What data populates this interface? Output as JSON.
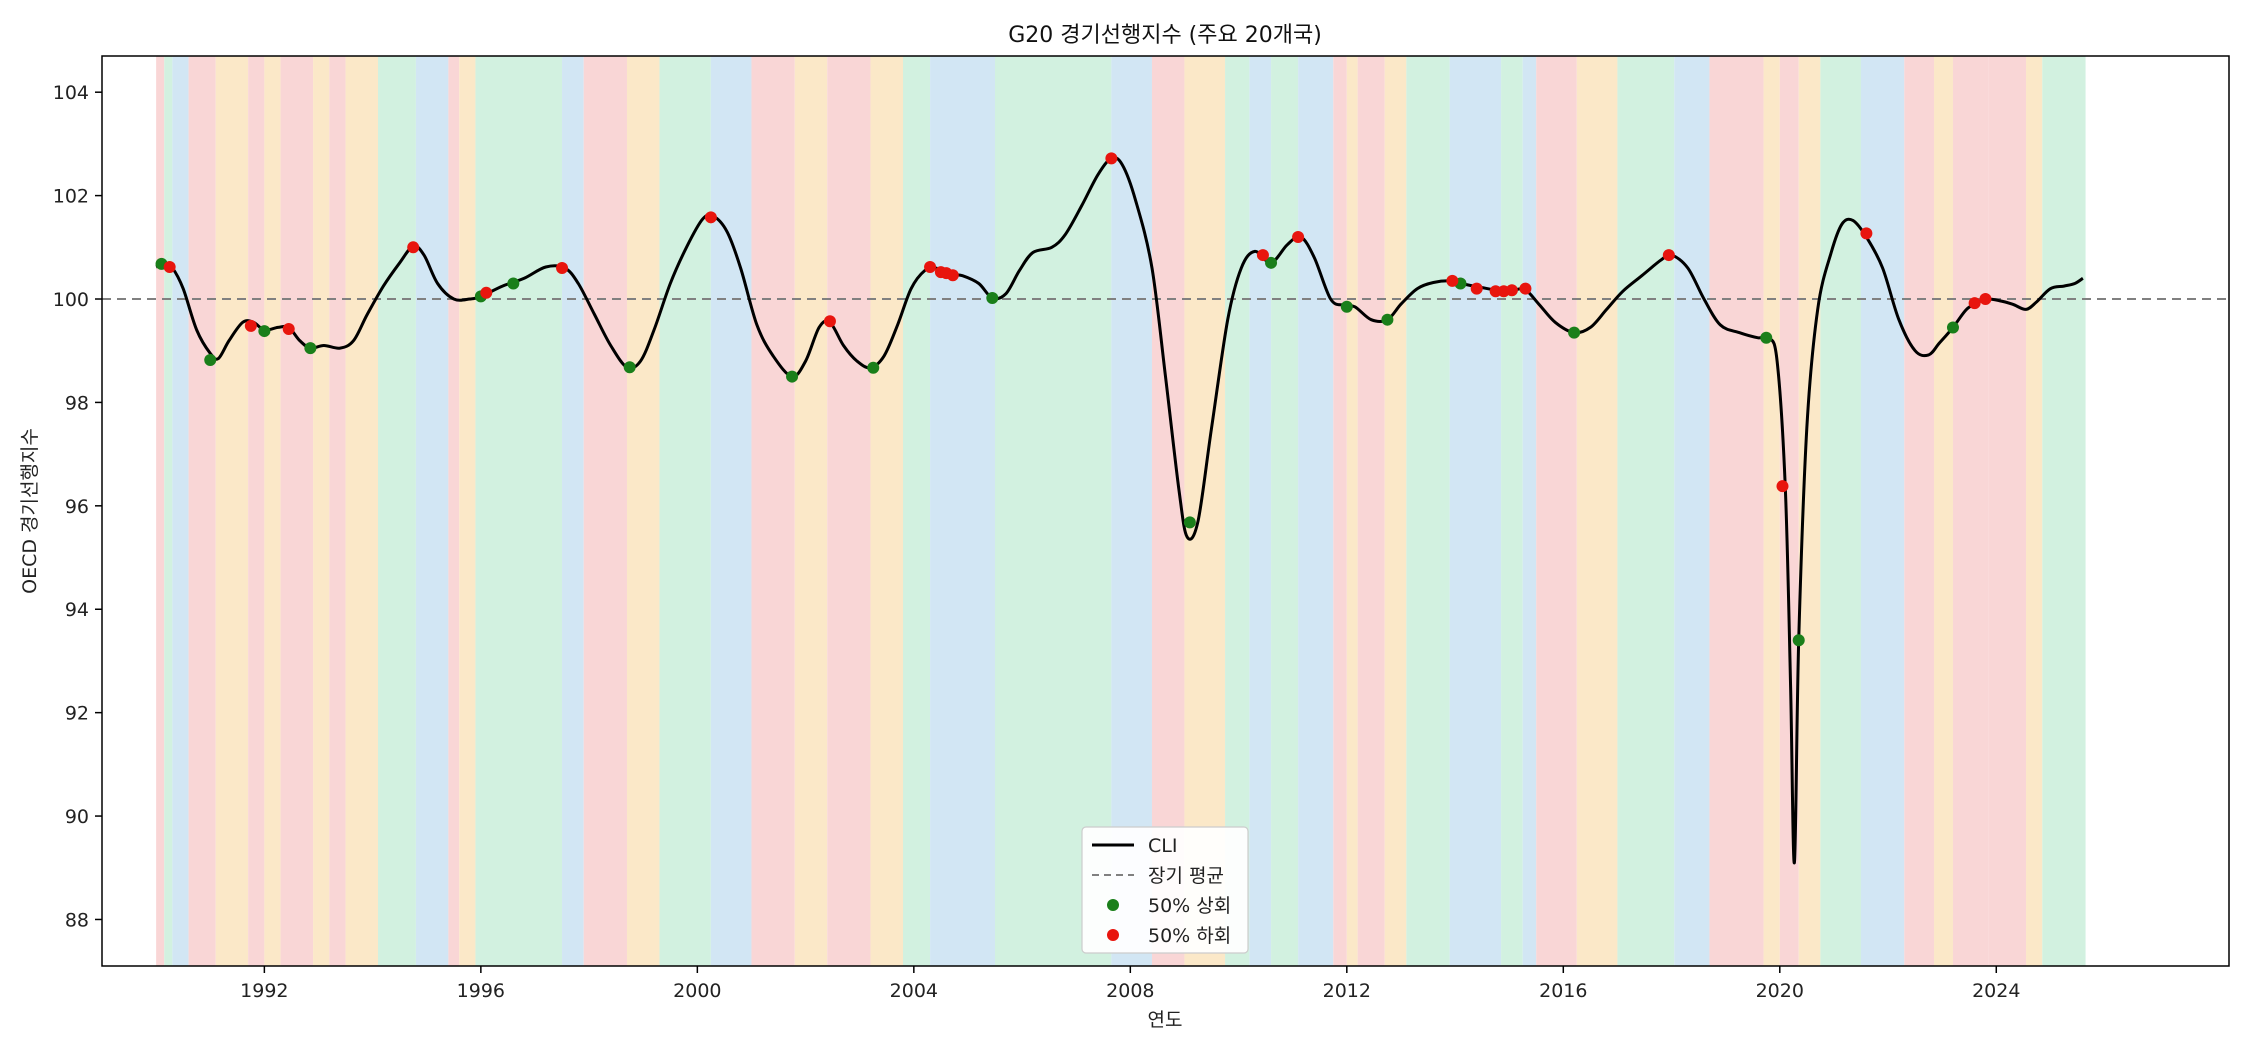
{
  "chart_data": {
    "type": "line",
    "title": "G20 경기선행지수 (주요 20개국)",
    "xlabel": "연도",
    "ylabel": "OECD 경기선행지수",
    "xlim": [
      1989.0,
      2028.3
    ],
    "ylim": [
      87.1,
      104.7
    ],
    "x_ticks": [
      "1992",
      "1996",
      "2000",
      "2004",
      "2008",
      "2012",
      "2016",
      "2020",
      "2024"
    ],
    "y_ticks": [
      "88",
      "90",
      "92",
      "94",
      "96",
      "98",
      "100",
      "102",
      "104"
    ],
    "reference_line": {
      "name": "장기 평균",
      "value": 100,
      "style": "dashed",
      "color": "#808080"
    },
    "grid": false,
    "legend_position": "lower-center",
    "legend": [
      {
        "label": "CLI",
        "kind": "line",
        "color": "#000000"
      },
      {
        "label": "장기 평균",
        "kind": "dashed",
        "color": "#808080"
      },
      {
        "label": "50% 상회",
        "kind": "dot",
        "color": "#1a7f1a"
      },
      {
        "label": "50% 하회",
        "kind": "dot",
        "color": "#e8150e"
      }
    ],
    "phase_colors": {
      "expansion": "#d2f1e0",
      "downturn": "#fbe8c8",
      "slowdown": "#f9d6d6",
      "recovery": "#d2e6f4"
    },
    "phases": [
      [
        "1990.00",
        "1990.15",
        "slowdown"
      ],
      [
        "1990.15",
        "1990.30",
        "expansion"
      ],
      [
        "1990.30",
        "1990.60",
        "recovery"
      ],
      [
        "1990.60",
        "1991.10",
        "slowdown"
      ],
      [
        "1991.10",
        "1991.70",
        "downturn"
      ],
      [
        "1991.70",
        "1992.00",
        "slowdown"
      ],
      [
        "1992.00",
        "1992.30",
        "downturn"
      ],
      [
        "1992.30",
        "1992.90",
        "slowdown"
      ],
      [
        "1992.90",
        "1993.20",
        "downturn"
      ],
      [
        "1993.20",
        "1993.50",
        "slowdown"
      ],
      [
        "1993.50",
        "1994.10",
        "downturn"
      ],
      [
        "1994.10",
        "1994.80",
        "expansion"
      ],
      [
        "1994.80",
        "1995.40",
        "recovery"
      ],
      [
        "1995.40",
        "1995.60",
        "slowdown"
      ],
      [
        "1995.60",
        "1995.90",
        "downturn"
      ],
      [
        "1995.90",
        "1997.50",
        "expansion"
      ],
      [
        "1997.50",
        "1997.90",
        "recovery"
      ],
      [
        "1997.90",
        "1998.70",
        "slowdown"
      ],
      [
        "1998.70",
        "1999.30",
        "downturn"
      ],
      [
        "1999.30",
        "2000.25",
        "expansion"
      ],
      [
        "2000.25",
        "2001.00",
        "recovery"
      ],
      [
        "2001.00",
        "2001.80",
        "slowdown"
      ],
      [
        "2001.80",
        "2002.40",
        "downturn"
      ],
      [
        "2002.40",
        "2003.20",
        "slowdown"
      ],
      [
        "2003.20",
        "2003.80",
        "downturn"
      ],
      [
        "2003.80",
        "2004.30",
        "expansion"
      ],
      [
        "2004.30",
        "2005.50",
        "recovery"
      ],
      [
        "2005.50",
        "2007.65",
        "expansion"
      ],
      [
        "2007.65",
        "2008.40",
        "recovery"
      ],
      [
        "2008.40",
        "2009.00",
        "slowdown"
      ],
      [
        "2009.00",
        "2009.75",
        "downturn"
      ],
      [
        "2009.75",
        "2010.20",
        "expansion"
      ],
      [
        "2010.20",
        "2010.60",
        "recovery"
      ],
      [
        "2010.60",
        "2011.10",
        "expansion"
      ],
      [
        "2011.10",
        "2011.75",
        "recovery"
      ],
      [
        "2011.75",
        "2012.00",
        "slowdown"
      ],
      [
        "2012.00",
        "2012.20",
        "downturn"
      ],
      [
        "2012.20",
        "2012.70",
        "slowdown"
      ],
      [
        "2012.70",
        "2013.10",
        "downturn"
      ],
      [
        "2013.10",
        "2013.90",
        "expansion"
      ],
      [
        "2013.90",
        "2014.85",
        "recovery"
      ],
      [
        "2014.85",
        "2015.25",
        "expansion"
      ],
      [
        "2015.25",
        "2015.50",
        "recovery"
      ],
      [
        "2015.50",
        "2016.25",
        "slowdown"
      ],
      [
        "2016.25",
        "2017.00",
        "downturn"
      ],
      [
        "2017.00",
        "2018.05",
        "expansion"
      ],
      [
        "2018.05",
        "2018.70",
        "recovery"
      ],
      [
        "2018.70",
        "2019.70",
        "slowdown"
      ],
      [
        "2019.70",
        "2020.00",
        "downturn"
      ],
      [
        "2020.00",
        "2020.35",
        "slowdown"
      ],
      [
        "2020.35",
        "2020.75",
        "downturn"
      ],
      [
        "2020.75",
        "2021.50",
        "expansion"
      ],
      [
        "2021.50",
        "2022.30",
        "recovery"
      ],
      [
        "2022.30",
        "2022.85",
        "slowdown"
      ],
      [
        "2022.85",
        "2023.20",
        "downturn"
      ],
      [
        "2023.20",
        "2023.85",
        "slowdown"
      ],
      [
        "2023.85",
        "2024.55",
        "slowdown"
      ],
      [
        "2024.55",
        "2024.85",
        "downturn"
      ],
      [
        "2024.85",
        "2025.65",
        "expansion"
      ]
    ],
    "series": [
      {
        "name": "CLI",
        "color": "#000000",
        "points": [
          [
            "1990.00",
            100.62
          ],
          [
            "1990.15",
            100.68
          ],
          [
            "1990.30",
            100.6
          ],
          [
            "1990.50",
            100.2
          ],
          [
            "1990.75",
            99.4
          ],
          [
            "1991.00",
            98.95
          ],
          [
            "1991.15",
            98.85
          ],
          [
            "1991.35",
            99.2
          ],
          [
            "1991.60",
            99.55
          ],
          [
            "1991.80",
            99.55
          ],
          [
            "1992.00",
            99.4
          ],
          [
            "1992.25",
            99.45
          ],
          [
            "1992.45",
            99.45
          ],
          [
            "1992.65",
            99.2
          ],
          [
            "1992.85",
            99.05
          ],
          [
            "1993.10",
            99.1
          ],
          [
            "1993.40",
            99.05
          ],
          [
            "1993.65",
            99.2
          ],
          [
            "1993.90",
            99.7
          ],
          [
            "1994.20",
            100.25
          ],
          [
            "1994.50",
            100.7
          ],
          [
            "1994.75",
            101.02
          ],
          [
            "1994.95",
            100.85
          ],
          [
            "1995.20",
            100.3
          ],
          [
            "1995.50",
            100.0
          ],
          [
            "1995.80",
            100.0
          ],
          [
            "1996.00",
            100.05
          ],
          [
            "1996.40",
            100.25
          ],
          [
            "1996.80",
            100.4
          ],
          [
            "1997.20",
            100.62
          ],
          [
            "1997.55",
            100.6
          ],
          [
            "1997.80",
            100.3
          ],
          [
            "1998.10",
            99.7
          ],
          [
            "1998.40",
            99.1
          ],
          [
            "1998.70",
            98.68
          ],
          [
            "1998.95",
            98.8
          ],
          [
            "1999.20",
            99.4
          ],
          [
            "1999.50",
            100.3
          ],
          [
            "1999.80",
            101.0
          ],
          [
            "2000.10",
            101.55
          ],
          [
            "2000.30",
            101.6
          ],
          [
            "2000.55",
            101.3
          ],
          [
            "2000.80",
            100.6
          ],
          [
            "2001.10",
            99.5
          ],
          [
            "2001.40",
            98.9
          ],
          [
            "2001.75",
            98.5
          ],
          [
            "2002.00",
            98.8
          ],
          [
            "2002.25",
            99.45
          ],
          [
            "2002.45",
            99.55
          ],
          [
            "2002.70",
            99.1
          ],
          [
            "2002.95",
            98.8
          ],
          [
            "2003.20",
            98.67
          ],
          [
            "2003.45",
            98.9
          ],
          [
            "2003.70",
            99.5
          ],
          [
            "2003.95",
            100.2
          ],
          [
            "2004.20",
            100.55
          ],
          [
            "2004.40",
            100.6
          ],
          [
            "2004.70",
            100.48
          ],
          [
            "2004.90",
            100.45
          ],
          [
            "2005.20",
            100.3
          ],
          [
            "2005.45",
            100.02
          ],
          [
            "2005.70",
            100.1
          ],
          [
            "2005.95",
            100.55
          ],
          [
            "2006.20",
            100.9
          ],
          [
            "2006.55",
            101.0
          ],
          [
            "2006.80",
            101.25
          ],
          [
            "2007.10",
            101.8
          ],
          [
            "2007.40",
            102.4
          ],
          [
            "2007.65",
            102.72
          ],
          [
            "2007.85",
            102.6
          ],
          [
            "2008.10",
            101.9
          ],
          [
            "2008.40",
            100.6
          ],
          [
            "2008.65",
            98.5
          ],
          [
            "2008.90",
            96.3
          ],
          [
            "2009.05",
            95.4
          ],
          [
            "2009.25",
            95.7
          ],
          [
            "2009.50",
            97.5
          ],
          [
            "2009.80",
            99.6
          ],
          [
            "2010.05",
            100.6
          ],
          [
            "2010.30",
            100.92
          ],
          [
            "2010.60",
            100.7
          ],
          [
            "2010.90",
            101.05
          ],
          [
            "2011.15",
            101.2
          ],
          [
            "2011.40",
            100.8
          ],
          [
            "2011.70",
            100.0
          ],
          [
            "2011.95",
            99.88
          ],
          [
            "2012.15",
            99.85
          ],
          [
            "2012.45",
            99.6
          ],
          [
            "2012.75",
            99.6
          ],
          [
            "2013.00",
            99.9
          ],
          [
            "2013.30",
            100.2
          ],
          [
            "2013.60",
            100.32
          ],
          [
            "2013.95",
            100.35
          ],
          [
            "2014.20",
            100.28
          ],
          [
            "2014.50",
            100.22
          ],
          [
            "2014.80",
            100.17
          ],
          [
            "2015.10",
            100.18
          ],
          [
            "2015.30",
            100.18
          ],
          [
            "2015.55",
            99.9
          ],
          [
            "2015.85",
            99.55
          ],
          [
            "2016.20",
            99.35
          ],
          [
            "2016.50",
            99.45
          ],
          [
            "2016.80",
            99.8
          ],
          [
            "2017.10",
            100.15
          ],
          [
            "2017.45",
            100.45
          ],
          [
            "2017.80",
            100.75
          ],
          [
            "2018.00",
            100.85
          ],
          [
            "2018.30",
            100.6
          ],
          [
            "2018.60",
            100.0
          ],
          [
            "2018.90",
            99.5
          ],
          [
            "2019.25",
            99.35
          ],
          [
            "2019.60",
            99.25
          ],
          [
            "2019.80",
            99.25
          ],
          [
            "2019.95",
            98.8
          ],
          [
            "2020.10",
            96.4
          ],
          [
            "2020.20",
            92.5
          ],
          [
            "2020.27",
            89.1
          ],
          [
            "2020.35",
            93.4
          ],
          [
            "2020.50",
            97.5
          ],
          [
            "2020.70",
            99.8
          ],
          [
            "2020.95",
            100.9
          ],
          [
            "2021.15",
            101.45
          ],
          [
            "2021.35",
            101.52
          ],
          [
            "2021.60",
            101.2
          ],
          [
            "2021.90",
            100.6
          ],
          [
            "2022.20",
            99.6
          ],
          [
            "2022.50",
            99.0
          ],
          [
            "2022.75",
            98.92
          ],
          [
            "2022.95",
            99.15
          ],
          [
            "2023.20",
            99.45
          ],
          [
            "2023.45",
            99.8
          ],
          [
            "2023.65",
            99.92
          ],
          [
            "2023.80",
            100.0
          ],
          [
            "2024.05",
            99.97
          ],
          [
            "2024.30",
            99.9
          ],
          [
            "2024.55",
            99.8
          ],
          [
            "2024.75",
            99.95
          ],
          [
            "2025.00",
            100.2
          ],
          [
            "2025.25",
            100.25
          ],
          [
            "2025.45",
            100.3
          ],
          [
            "2025.60",
            100.4
          ]
        ]
      }
    ],
    "markers": {
      "above": {
        "name": "50% 상회",
        "color": "#1a7f1a",
        "points": [
          [
            "1990.10",
            100.68
          ],
          [
            "1991.00",
            98.82
          ],
          [
            "1992.00",
            99.38
          ],
          [
            "1992.85",
            99.05
          ],
          [
            "1996.00",
            100.05
          ],
          [
            "1996.60",
            100.3
          ],
          [
            "1998.75",
            98.68
          ],
          [
            "2001.75",
            98.5
          ],
          [
            "2003.25",
            98.67
          ],
          [
            "2005.45",
            100.02
          ],
          [
            "2009.10",
            95.68
          ],
          [
            "2010.60",
            100.7
          ],
          [
            "2012.00",
            99.85
          ],
          [
            "2012.75",
            99.6
          ],
          [
            "2014.10",
            100.3
          ],
          [
            "2016.20",
            99.35
          ],
          [
            "2019.75",
            99.25
          ],
          [
            "2020.35",
            93.4
          ],
          [
            "2023.20",
            99.45
          ]
        ]
      },
      "below": {
        "name": "50% 하회",
        "color": "#e8150e",
        "points": [
          [
            "1990.25",
            100.62
          ],
          [
            "1991.75",
            99.48
          ],
          [
            "1992.45",
            99.42
          ],
          [
            "1994.75",
            101.0
          ],
          [
            "1996.10",
            100.12
          ],
          [
            "1997.50",
            100.6
          ],
          [
            "2000.25",
            101.58
          ],
          [
            "2002.45",
            99.57
          ],
          [
            "2004.30",
            100.62
          ],
          [
            "2004.50",
            100.52
          ],
          [
            "2004.60",
            100.5
          ],
          [
            "2004.72",
            100.46
          ],
          [
            "2007.65",
            102.72
          ],
          [
            "2010.45",
            100.85
          ],
          [
            "2011.10",
            101.2
          ],
          [
            "2013.95",
            100.35
          ],
          [
            "2014.40",
            100.2
          ],
          [
            "2014.75",
            100.15
          ],
          [
            "2014.90",
            100.15
          ],
          [
            "2015.05",
            100.17
          ],
          [
            "2015.30",
            100.2
          ],
          [
            "2017.95",
            100.85
          ],
          [
            "2020.05",
            96.38
          ],
          [
            "2021.60",
            101.27
          ],
          [
            "2023.60",
            99.92
          ],
          [
            "2023.80",
            100.0
          ]
        ]
      }
    }
  }
}
